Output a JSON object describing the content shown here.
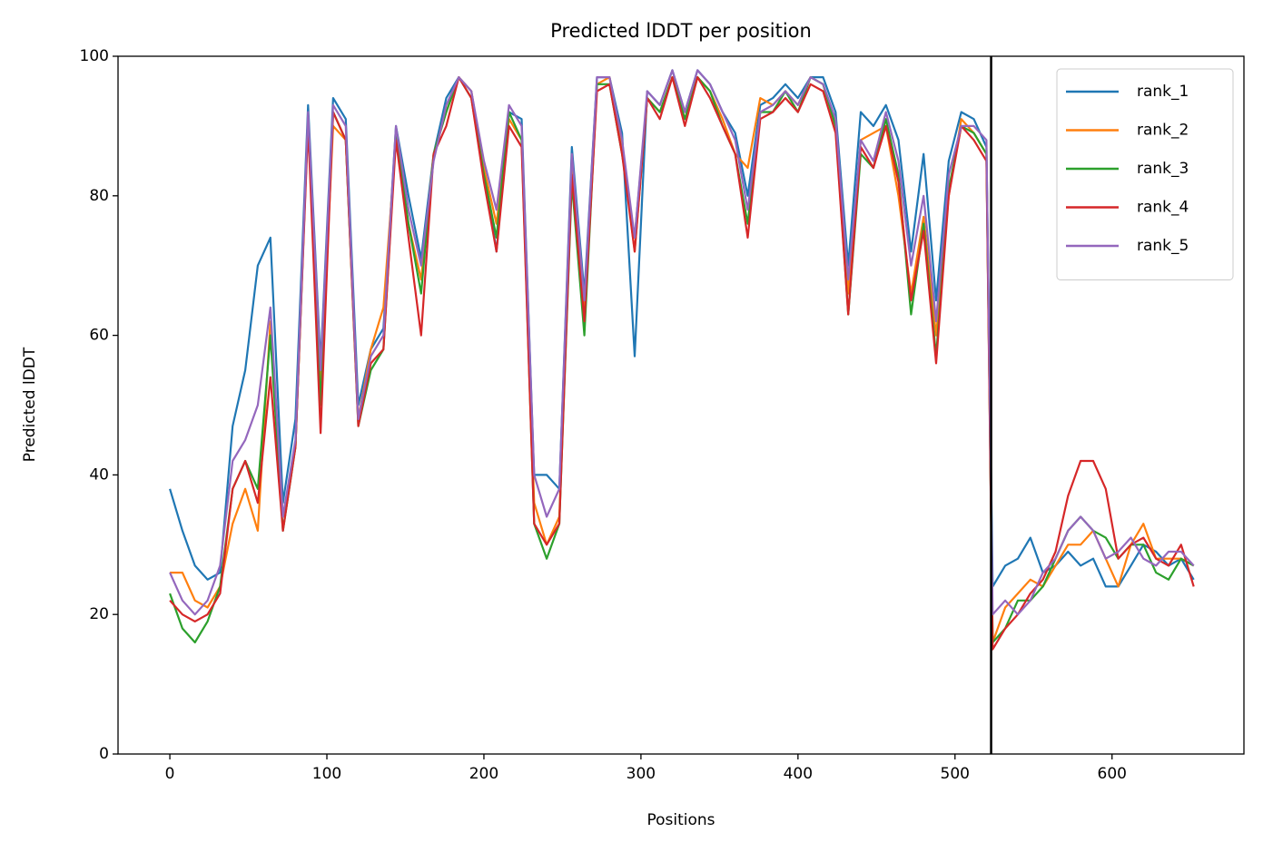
{
  "chart_data": {
    "type": "line",
    "title": "Predicted lDDT per position",
    "xlabel": "Positions",
    "ylabel": "Predicted lDDT",
    "x": [
      0,
      8,
      16,
      24,
      32,
      40,
      48,
      56,
      64,
      72,
      80,
      88,
      96,
      104,
      112,
      120,
      128,
      136,
      144,
      152,
      160,
      168,
      176,
      184,
      192,
      200,
      208,
      216,
      224,
      232,
      240,
      248,
      256,
      264,
      272,
      280,
      288,
      296,
      304,
      312,
      320,
      328,
      336,
      344,
      352,
      360,
      368,
      376,
      384,
      392,
      400,
      408,
      416,
      424,
      432,
      440,
      448,
      456,
      464,
      472,
      480,
      488,
      496,
      504,
      512,
      520,
      524,
      532,
      540,
      548,
      556,
      564,
      572,
      580,
      588,
      596,
      604,
      612,
      620,
      628,
      636,
      644,
      652
    ],
    "series": [
      {
        "name": "rank_1",
        "color": "#1f77b4",
        "values": [
          38,
          32,
          27,
          25,
          26,
          47,
          55,
          70,
          74,
          36,
          48,
          93,
          56,
          94,
          91,
          50,
          58,
          61,
          90,
          80,
          71,
          86,
          94,
          97,
          95,
          84,
          72,
          92,
          91,
          40,
          40,
          38,
          87,
          66,
          97,
          97,
          89,
          57,
          95,
          93,
          98,
          92,
          98,
          96,
          92,
          89,
          80,
          93,
          94,
          96,
          94,
          97,
          97,
          92,
          70,
          92,
          90,
          93,
          88,
          72,
          86,
          65,
          85,
          92,
          91,
          87,
          24,
          27,
          28,
          31,
          26,
          27,
          29,
          27,
          28,
          24,
          24,
          27,
          30,
          29,
          27,
          28,
          25
        ]
      },
      {
        "name": "rank_2",
        "color": "#ff7f0e",
        "values": [
          26,
          26,
          22,
          21,
          24,
          33,
          38,
          32,
          62,
          34,
          44,
          91,
          52,
          90,
          88,
          48,
          58,
          64,
          88,
          76,
          68,
          86,
          92,
          97,
          95,
          84,
          76,
          91,
          88,
          36,
          30,
          34,
          84,
          64,
          96,
          97,
          87,
          72,
          94,
          92,
          97,
          91,
          97,
          95,
          91,
          86,
          84,
          94,
          93,
          95,
          93,
          97,
          96,
          90,
          66,
          88,
          89,
          90,
          80,
          66,
          77,
          60,
          80,
          91,
          89,
          86,
          16,
          21,
          23,
          25,
          24,
          27,
          30,
          30,
          32,
          28,
          24,
          30,
          33,
          28,
          28,
          28,
          27
        ]
      },
      {
        "name": "rank_3",
        "color": "#2ca02c",
        "values": [
          23,
          18,
          16,
          19,
          24,
          38,
          42,
          38,
          60,
          32,
          44,
          91,
          50,
          92,
          88,
          47,
          55,
          58,
          89,
          76,
          66,
          86,
          92,
          97,
          94,
          83,
          74,
          92,
          88,
          33,
          28,
          33,
          82,
          60,
          96,
          96,
          86,
          74,
          94,
          92,
          97,
          91,
          97,
          95,
          90,
          86,
          76,
          92,
          92,
          95,
          92,
          97,
          96,
          90,
          63,
          86,
          84,
          91,
          83,
          63,
          76,
          57,
          81,
          90,
          89,
          86,
          16,
          18,
          22,
          22,
          24,
          28,
          32,
          34,
          32,
          31,
          28,
          30,
          30,
          26,
          25,
          28,
          27
        ]
      },
      {
        "name": "rank_4",
        "color": "#d62728",
        "values": [
          22,
          20,
          19,
          20,
          23,
          38,
          42,
          36,
          54,
          32,
          44,
          90,
          46,
          92,
          88,
          47,
          56,
          58,
          88,
          74,
          60,
          86,
          90,
          97,
          94,
          82,
          72,
          90,
          87,
          33,
          30,
          33,
          83,
          62,
          95,
          96,
          86,
          72,
          94,
          91,
          97,
          90,
          97,
          94,
          90,
          86,
          74,
          91,
          92,
          94,
          92,
          96,
          95,
          89,
          63,
          87,
          84,
          90,
          82,
          65,
          75,
          56,
          80,
          90,
          88,
          85,
          15,
          18,
          20,
          23,
          25,
          29,
          37,
          42,
          42,
          38,
          28,
          30,
          31,
          28,
          27,
          30,
          24
        ]
      },
      {
        "name": "rank_5",
        "color": "#9467bd",
        "values": [
          26,
          22,
          20,
          22,
          27,
          42,
          45,
          50,
          64,
          34,
          45,
          92,
          55,
          93,
          90,
          48,
          57,
          60,
          90,
          78,
          70,
          85,
          93,
          97,
          95,
          85,
          78,
          93,
          90,
          40,
          34,
          38,
          86,
          65,
          97,
          97,
          88,
          74,
          95,
          93,
          98,
          92,
          98,
          96,
          92,
          88,
          78,
          92,
          93,
          95,
          93,
          97,
          96,
          91,
          68,
          88,
          85,
          92,
          85,
          70,
          80,
          62,
          83,
          90,
          90,
          88,
          20,
          22,
          20,
          22,
          26,
          28,
          32,
          34,
          32,
          28,
          29,
          31,
          28,
          27,
          29,
          29,
          27
        ]
      }
    ],
    "vlines": [
      523
    ],
    "vline_color": "#000000",
    "xlim": [
      -33,
      684
    ],
    "xticks": [
      0,
      100,
      200,
      300,
      400,
      500,
      600
    ],
    "ylim": [
      0,
      100
    ],
    "yticks": [
      0,
      20,
      40,
      60,
      80,
      100
    ],
    "grid": false,
    "legend": "upper right"
  }
}
